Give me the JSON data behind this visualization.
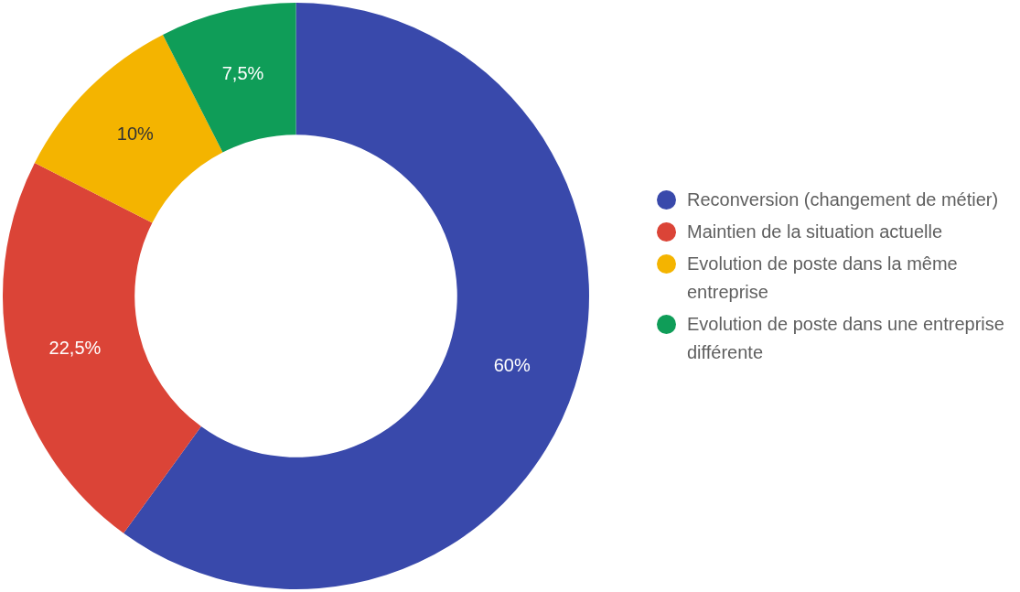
{
  "chart_data": {
    "type": "donut",
    "categories": [
      "Reconversion (changement de métier)",
      "Maintien de la situation actuelle",
      "Evolution de poste dans la même entreprise",
      "Evolution de poste dans une entreprise différente"
    ],
    "values": [
      60,
      22.5,
      10,
      7.5
    ],
    "colors": [
      "#3949ab",
      "#db4437",
      "#f4b400",
      "#0f9d58"
    ],
    "value_labels": [
      "60%",
      "22,5%",
      "10%",
      "7,5%"
    ],
    "legend": "right"
  }
}
